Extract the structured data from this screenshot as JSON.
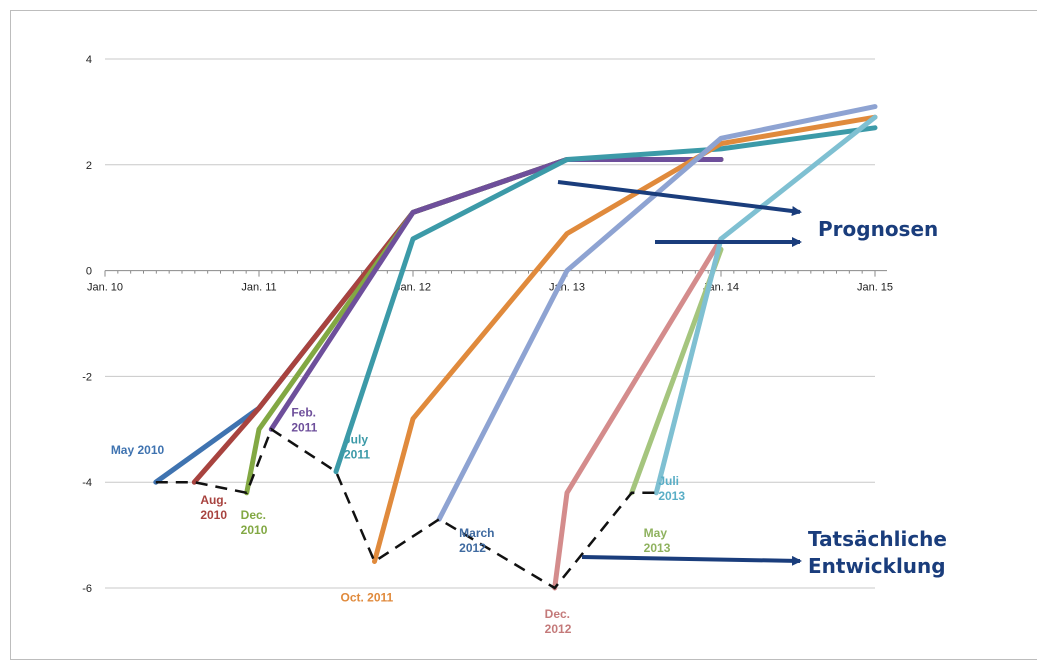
{
  "chart_data": {
    "type": "line",
    "title": "",
    "xlabel": "",
    "ylabel": "",
    "ylim": [
      -6.5,
      4.2
    ],
    "x_ticks": [
      {
        "t": 2010.0,
        "label": "Jan. 10"
      },
      {
        "t": 2011.0,
        "label": "Jan. 11"
      },
      {
        "t": 2012.0,
        "label": "Jan. 12"
      },
      {
        "t": 2013.0,
        "label": "Jan. 13"
      },
      {
        "t": 2014.0,
        "label": "Jan. 14"
      },
      {
        "t": 2015.0,
        "label": "Jan. 15"
      }
    ],
    "y_ticks": [
      4,
      2,
      0,
      -2,
      -4,
      -6
    ],
    "grid": "horizontal",
    "series": [
      {
        "name": "May 2010",
        "label_lines": [
          "May 2010"
        ],
        "color": "#3f73b0",
        "label_color": "#3f73b0",
        "points": [
          [
            2010.33,
            -4.0
          ],
          [
            2011.0,
            -2.6
          ],
          [
            2012.0,
            1.1
          ],
          [
            2013.0,
            2.1
          ],
          [
            2014.0,
            2.1
          ]
        ]
      },
      {
        "name": "Aug. 2010",
        "label_lines": [
          "Aug.",
          "2010"
        ],
        "color": "#a8433f",
        "label_color": "#a8433f",
        "points": [
          [
            2010.58,
            -4.0
          ],
          [
            2011.0,
            -2.6
          ],
          [
            2012.0,
            1.1
          ],
          [
            2013.0,
            2.1
          ],
          [
            2014.0,
            2.1
          ]
        ]
      },
      {
        "name": "Dec. 2010",
        "label_lines": [
          "Dec.",
          "2010"
        ],
        "color": "#82a843",
        "label_color": "#82a843",
        "points": [
          [
            2010.92,
            -4.2
          ],
          [
            2011.0,
            -3.0
          ],
          [
            2012.0,
            1.1
          ],
          [
            2013.0,
            2.1
          ],
          [
            2014.0,
            2.1
          ]
        ]
      },
      {
        "name": "Feb. 2011",
        "label_lines": [
          "Feb.",
          "2011"
        ],
        "color": "#6e4f9b",
        "label_color": "#6e4f9b",
        "points": [
          [
            2011.08,
            -3.0
          ],
          [
            2012.0,
            1.1
          ],
          [
            2013.0,
            2.1
          ],
          [
            2014.0,
            2.1
          ]
        ]
      },
      {
        "name": "July 2011",
        "label_lines": [
          "July",
          "2011"
        ],
        "color": "#3c9aa8",
        "label_color": "#3c9aa8",
        "points": [
          [
            2011.5,
            -3.8
          ],
          [
            2012.0,
            0.6
          ],
          [
            2013.0,
            2.1
          ],
          [
            2014.0,
            2.3
          ],
          [
            2015.0,
            2.7
          ]
        ]
      },
      {
        "name": "Oct. 2011",
        "label_lines": [
          "Oct. 2011"
        ],
        "color": "#e08a3c",
        "label_color": "#e08a3c",
        "points": [
          [
            2011.75,
            -5.5
          ],
          [
            2012.0,
            -2.8
          ],
          [
            2013.0,
            0.7
          ],
          [
            2014.0,
            2.4
          ],
          [
            2015.0,
            2.9
          ]
        ]
      },
      {
        "name": "March 2012",
        "label_lines": [
          "March",
          "2012"
        ],
        "color": "#8ea3d2",
        "label_color": "#3f6aa0",
        "points": [
          [
            2012.17,
            -4.7
          ],
          [
            2013.0,
            0.0
          ],
          [
            2014.0,
            2.5
          ],
          [
            2015.0,
            3.1
          ]
        ]
      },
      {
        "name": "Dec. 2012",
        "label_lines": [
          "Dec.",
          "2012"
        ],
        "color": "#d48c8c",
        "label_color": "#c47a7a",
        "points": [
          [
            2012.92,
            -6.0
          ],
          [
            2013.0,
            -4.2
          ],
          [
            2014.0,
            0.6
          ]
        ]
      },
      {
        "name": "May 2013",
        "label_lines": [
          "May",
          "2013"
        ],
        "color": "#a5c57e",
        "label_color": "#8fb25f",
        "points": [
          [
            2013.42,
            -4.2
          ],
          [
            2014.0,
            0.4
          ]
        ]
      },
      {
        "name": "Juli 2013",
        "label_lines": [
          "Juli",
          "2013"
        ],
        "color": "#7fc0d2",
        "label_color": "#5aaec6",
        "points": [
          [
            2013.58,
            -4.2
          ],
          [
            2014.0,
            0.6
          ],
          [
            2015.0,
            2.9
          ]
        ]
      }
    ],
    "actual": {
      "name": "Tatsächliche Entwicklung",
      "color": "#111111",
      "style": "dashed",
      "points": [
        [
          2010.33,
          -4.0
        ],
        [
          2010.58,
          -4.0
        ],
        [
          2010.92,
          -4.2
        ],
        [
          2011.08,
          -3.0
        ],
        [
          2011.5,
          -3.8
        ],
        [
          2011.75,
          -5.5
        ],
        [
          2012.17,
          -4.7
        ],
        [
          2012.92,
          -6.0
        ],
        [
          2013.42,
          -4.2
        ],
        [
          2013.58,
          -4.2
        ]
      ]
    }
  },
  "annotations": {
    "prognosen": "Prognosen",
    "tatsaechliche_line1": "Tatsächliche",
    "tatsaechliche_line2": "Entwicklung",
    "arrow_color": "#1a3d7c"
  }
}
